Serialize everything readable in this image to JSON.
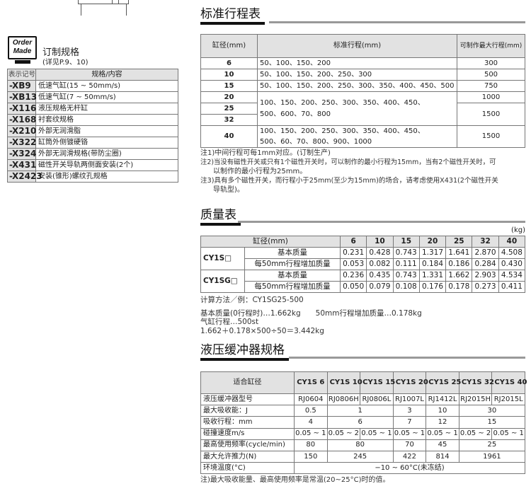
{
  "order_made": {
    "logo": "Order Made",
    "title": "订制规格",
    "subtitle": "(详见P.9、10)",
    "headers": [
      "表示记号",
      "规格/内容"
    ],
    "rows": [
      [
        "-XB9",
        "低速气缸(15 ~ 50mm/s)"
      ],
      [
        "-XB13",
        "低速气缸(7 ~ 50mm/s)"
      ],
      [
        "-X116",
        "液压规格无杆缸"
      ],
      [
        "-X168",
        "衬套纹规格"
      ],
      [
        "-X210",
        "外部无润滑脂"
      ],
      [
        "-X322",
        "缸筒外侧镀硬铬"
      ],
      [
        "-X324",
        "外部无润滑规格(带防尘圈)"
      ],
      [
        "-X431",
        "磁性开关导轨两侧面安装(2个)"
      ],
      [
        "-X2423",
        "安装(锥形)螺纹孔规格"
      ]
    ]
  },
  "stroke": {
    "title": "标准行程表",
    "headers": [
      "缸径(mm)",
      "标准行程(mm)",
      "可制作最大行程(mm)"
    ],
    "bores": [
      "6",
      "10",
      "15",
      "20",
      "25",
      "32",
      "40"
    ],
    "strokes": [
      "50、100、150、200",
      "50、100、150、200、250、300",
      "50、100、150、200、250、300、350、400、450、500",
      "100、150、200、250、300、350、400、450、",
      "500、600、70、800",
      "100、150、200、250、300、350、400、450、",
      "500、60、70、800、900、1000"
    ],
    "max": [
      "300",
      "500",
      "750",
      "1000",
      "1500",
      "1500"
    ],
    "notes": [
      "注1)中间行程可每1mm对应。(订制生产)",
      "注2)当没有磁性开关或只有1个磁性开关时，可以制作的最小行程为15mm，当有2个磁性开关时，可",
      "以制作的最小行程为25mm。",
      "注3)具有多个磁性开关，而行程小于25mm(至少为15mm)的场合，请考虑使用X431(2个磁性开关",
      "导轨型)。"
    ]
  },
  "mass": {
    "title": "质量表",
    "unit": "(kg)",
    "header": "缸径(mm)",
    "bores": [
      "6",
      "10",
      "15",
      "20",
      "25",
      "32",
      "40"
    ],
    "groups": [
      {
        "model": "CY1S□",
        "rows": [
          {
            "label": "基本质量",
            "values": [
              "0.231",
              "0.428",
              "0.743",
              "1.317",
              "1.641",
              "2.870",
              "4.508"
            ]
          },
          {
            "label": "每50mm行程增加质量",
            "values": [
              "0.053",
              "0.082",
              "0.111",
              "0.184",
              "0.186",
              "0.284",
              "0.430"
            ]
          }
        ]
      },
      {
        "model": "CY1SG□",
        "rows": [
          {
            "label": "基本质量",
            "values": [
              "0.236",
              "0.435",
              "0.743",
              "1.331",
              "1.662",
              "2.903",
              "4.534"
            ]
          },
          {
            "label": "每50mm行程增加质量",
            "values": [
              "0.050",
              "0.079",
              "0.108",
              "0.176",
              "0.178",
              "0.273",
              "0.411"
            ]
          }
        ]
      }
    ],
    "calc": [
      "计算方法／例：CY1SG25-500",
      "基本质量(0行程时)…1.662kg　　50mm行程增加质量…0.178kg",
      "气缸行程…500st",
      "1.662＋0.178×500÷50＝3.442kg"
    ]
  },
  "shock": {
    "title": "液压缓冲器规格",
    "header": "适合缸径",
    "bores": [
      "CY1S 6",
      "CY1S 10",
      "CY1S 15",
      "CY1S 20",
      "CY1S 25",
      "CY1S 32",
      "CY1S 40"
    ],
    "labels": [
      "液压缓冲器型号",
      "最大吸收能：J",
      "吸收行程：mm",
      "碰撞速度m/s",
      "最高使用频率(cycle/min)",
      "最大允许推力(N)",
      "环境温度(°C)"
    ],
    "models": [
      "RJ0604",
      "RJ0806H",
      "RJ0806L",
      "RJ1007L",
      "RJ1412L",
      "RJ2015H",
      "RJ2015L"
    ],
    "energy": [
      "0.5",
      "1",
      "3",
      "10",
      "30"
    ],
    "stroke": [
      "4",
      "6",
      "7",
      "12",
      "15"
    ],
    "speed": [
      "0.05 ~ 1",
      "0.05 ~ 2",
      "0.05 ~ 1",
      "0.05 ~ 1",
      "0.05 ~ 1",
      "0.05 ~ 2",
      "0.05 ~ 1"
    ],
    "freq": [
      "80",
      "80",
      "70",
      "45",
      "25"
    ],
    "thrust": [
      "150",
      "245",
      "422",
      "814",
      "1961"
    ],
    "temp": "−10 ~ 60°C(未冻结)",
    "note": "注)最大吸收能量、最高使用频率是常温(20~25°C)时的值。"
  }
}
